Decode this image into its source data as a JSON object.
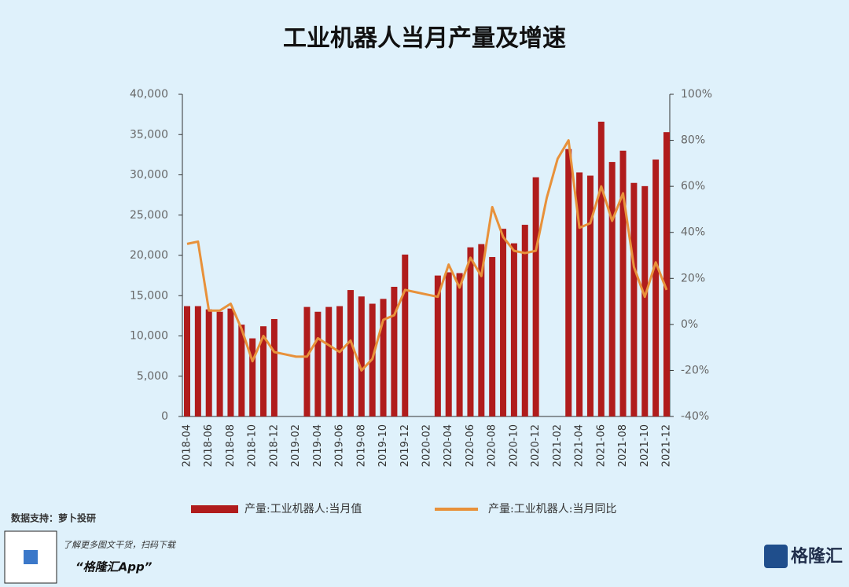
{
  "chart_data": {
    "type": "bar-line",
    "title": "工业机器人当月产量及增速",
    "categories": [
      "2018-04",
      null,
      "2018-06",
      null,
      "2018-08",
      null,
      "2018-10",
      null,
      "2018-12",
      null,
      "2019-02",
      null,
      "2019-04",
      null,
      "2019-06",
      null,
      "2019-08",
      null,
      "2019-10",
      null,
      "2019-12",
      null,
      "2020-02",
      null,
      "2020-04",
      null,
      "2020-06",
      null,
      "2020-08",
      null,
      "2020-10",
      null,
      "2020-12",
      null,
      "2021-02",
      null,
      "2021-04",
      null,
      "2021-06",
      null,
      "2021-08",
      null,
      "2021-10",
      null,
      "2021-12"
    ],
    "series": [
      {
        "name": "产量:工业机器人:当月值",
        "type": "bar",
        "color": "#b01c1c",
        "values": [
          13700,
          13700,
          13300,
          13000,
          13400,
          11400,
          9700,
          11200,
          12100,
          null,
          null,
          13600,
          13000,
          13600,
          13700,
          15700,
          14900,
          14000,
          14600,
          16100,
          20100,
          null,
          null,
          17500,
          17900,
          17800,
          21000,
          21400,
          19800,
          23300,
          21500,
          23800,
          29700,
          null,
          null,
          33200,
          30300,
          29900,
          36600,
          31600,
          33000,
          29000,
          28600,
          31900,
          35300
        ]
      },
      {
        "name": "产量:工业机器人:当月同比",
        "type": "line",
        "axis": "y2",
        "color": "#e8913a",
        "values": [
          35,
          36,
          6,
          6,
          9,
          -2,
          -16,
          -5,
          -12,
          -13,
          -14,
          -14,
          -6,
          -9,
          -12,
          -7,
          -20,
          -15,
          2,
          4,
          15,
          14,
          13,
          12,
          26,
          16,
          29,
          21,
          51,
          38,
          32,
          31,
          32,
          55,
          72,
          80,
          42,
          44,
          60,
          45,
          57,
          25,
          12,
          27,
          15
        ]
      }
    ],
    "ylim": [
      0,
      40000
    ],
    "yticks": [
      0,
      {
        "value": 5000,
        "label": "5,000"
      },
      {
        "value": 10000,
        "label": "10,000"
      },
      {
        "value": 15000,
        "label": "15,000"
      },
      {
        "value": 20000,
        "label": "20,000"
      },
      {
        "value": 25000,
        "label": "25,000"
      },
      {
        "value": 30000,
        "label": "30,000"
      },
      {
        "value": 35000,
        "label": "35,000"
      },
      {
        "value": 40000,
        "label": "40,000"
      }
    ],
    "y2lim": [
      -40,
      100
    ],
    "y2ticks": [
      {
        "value": -40,
        "label": "-40%"
      },
      {
        "value": -20,
        "label": "-20%"
      },
      {
        "value": 0,
        "label": "0%"
      },
      {
        "value": 20,
        "label": "20%"
      },
      {
        "value": 40,
        "label": "40%"
      },
      {
        "value": 60,
        "label": "60%"
      },
      {
        "value": 80,
        "label": "80%"
      },
      {
        "value": 100,
        "label": "100%"
      }
    ]
  },
  "footer": {
    "source": "数据支持：萝卜投研",
    "promo": "了解更多图文干货，扫码下载",
    "app": "“格隆汇App”",
    "logo": "格隆汇"
  }
}
